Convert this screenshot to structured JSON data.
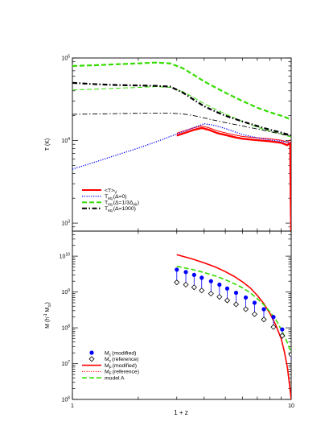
{
  "chart_data": [
    {
      "type": "line",
      "xlabel": "1 + z",
      "ylabel": "T (K)",
      "xscale": "log",
      "yscale": "log",
      "xlim": [
        1,
        10
      ],
      "ylim": [
        800,
        100000
      ],
      "x_tick_labels": [
        "1",
        "10"
      ],
      "y_tick_labels": [
        {
          "base": "10",
          "exp": "3"
        },
        {
          "base": "10",
          "exp": "4"
        },
        {
          "base": "10",
          "exp": "5"
        }
      ],
      "legend_position": "bottom-left",
      "grid": false,
      "series": [
        {
          "name": "<T>",
          "name_sub": "V",
          "color": "#ff0000",
          "style": "solid",
          "width": 2.4,
          "x": [
            3.0,
            3.3,
            3.6,
            3.9,
            4.2,
            4.6,
            5.0,
            5.5,
            6.0,
            7.0,
            8.0,
            9.0,
            9.6,
            9.9,
            9.95,
            10.0
          ],
          "y": [
            11500,
            12500,
            13500,
            14200,
            13500,
            12300,
            11700,
            11000,
            10500,
            10100,
            9800,
            9400,
            8800,
            9400,
            2000,
            800
          ]
        },
        {
          "name": "",
          "color": "#ff0000",
          "style": "solid",
          "width": 1.0,
          "x": [
            3.0,
            3.3,
            3.6,
            3.9,
            4.2,
            4.6,
            5.0,
            5.5,
            6.0,
            7.0,
            8.0,
            9.0,
            9.6,
            9.9
          ],
          "y": [
            12300,
            13300,
            14300,
            15000,
            14300,
            13100,
            12400,
            11700,
            11200,
            10800,
            10500,
            10100,
            9600,
            10200
          ]
        },
        {
          "name": "T",
          "name_sub": "eq",
          "name_suffix": "(Δ=0)",
          "color": "#0000ff",
          "style": "dotted",
          "width": 1.3,
          "x": [
            1.0,
            1.3,
            1.6,
            2.0,
            2.5,
            3.0,
            3.5,
            4.0,
            4.5,
            5.0,
            5.5,
            6.0,
            7.0,
            8.0,
            9.0,
            9.6,
            9.9
          ],
          "y": [
            4500,
            5600,
            6700,
            8100,
            10000,
            12000,
            14000,
            16000,
            15200,
            14000,
            12800,
            11800,
            10800,
            10200,
            9800,
            9500,
            9400
          ]
        },
        {
          "name": "T",
          "name_sub": "eq",
          "name_suffix": "(Δ=1/3Δ",
          "name_suffix_sub": "vir",
          "name_suffix_end": ")",
          "color": "#33dd00",
          "style": "dashed",
          "width": 2.2,
          "x": [
            1.0,
            1.3,
            1.6,
            2.0,
            2.4,
            2.8,
            3.2,
            3.6,
            4.0,
            4.5,
            5.0,
            6.0,
            7.0,
            8.0,
            9.0,
            10.0
          ],
          "y": [
            80000,
            82000,
            84000,
            86000,
            88000,
            86000,
            75000,
            62000,
            52000,
            44000,
            38000,
            30000,
            25000,
            22000,
            20000,
            18000
          ]
        },
        {
          "name": "",
          "color": "#33dd00",
          "style": "dashed",
          "width": 1.0,
          "x": [
            1.0,
            1.3,
            1.6,
            2.0,
            2.4,
            2.8,
            3.2,
            3.6,
            4.0,
            4.5,
            5.0,
            6.0,
            7.0,
            8.0,
            9.0,
            10.0
          ],
          "y": [
            41000,
            42000,
            43000,
            44000,
            45000,
            44000,
            39000,
            33000,
            28000,
            24000,
            21000,
            17000,
            14500,
            13000,
            12000,
            11000
          ]
        },
        {
          "name": "T",
          "name_sub": "eq",
          "name_suffix": "(Δ=1000)",
          "color": "#000000",
          "style": "dashdot",
          "width": 2.2,
          "x": [
            1.0,
            1.3,
            1.6,
            2.0,
            2.4,
            2.8,
            3.2,
            3.6,
            4.0,
            4.5,
            5.0,
            6.0,
            7.0,
            8.0,
            9.0,
            10.0
          ],
          "y": [
            50000,
            48000,
            47000,
            46500,
            46000,
            45000,
            38000,
            31000,
            26000,
            22500,
            20000,
            17000,
            15000,
            13500,
            12500,
            11500
          ]
        },
        {
          "name": "",
          "color": "#000000",
          "style": "dashdot",
          "width": 0.9,
          "x": [
            1.0,
            1.3,
            1.6,
            2.0,
            2.4,
            2.8,
            3.2,
            3.6,
            4.0,
            4.5,
            5.0,
            6.0,
            7.0,
            8.0,
            9.0,
            10.0
          ],
          "y": [
            20800,
            21000,
            21200,
            21400,
            21500,
            21500,
            21000,
            20000,
            18800,
            17500,
            16500,
            15000,
            13800,
            12800,
            12000,
            11300
          ]
        }
      ]
    },
    {
      "type": "scatter",
      "xlabel": "1 + z",
      "ylabel": "M (h",
      "ylabel_sup": "-1",
      "ylabel_mid": " M",
      "ylabel_sub": "⊙",
      "ylabel_end": ")",
      "xscale": "log",
      "yscale": "log",
      "xlim": [
        1,
        10
      ],
      "ylim": [
        1000000,
        50000000000
      ],
      "x_tick_labels": [
        "1",
        "10"
      ],
      "y_tick_labels": [
        {
          "base": "10",
          "exp": "6"
        },
        {
          "base": "10",
          "exp": "7"
        },
        {
          "base": "10",
          "exp": "8"
        },
        {
          "base": "10",
          "exp": "9"
        },
        {
          "base": "10",
          "exp": "10"
        }
      ],
      "legend_position": "bottom-left",
      "grid": false,
      "points": [
        {
          "name": "M",
          "name_sub": "c",
          "name_suffix": "(modified)",
          "marker": "filled-circle",
          "color": "#0000ff",
          "x": [
            3.0,
            3.3,
            3.6,
            3.9,
            4.3,
            4.7,
            5.1,
            5.6,
            6.2,
            6.8,
            7.5,
            8.3,
            9.1,
            10.0
          ],
          "y": [
            4200000000,
            3600000000,
            3000000000,
            2500000000,
            2000000000,
            1600000000,
            1250000000,
            950000000,
            700000000,
            500000000,
            330000000,
            200000000,
            90000000,
            18000000
          ],
          "err_low": [
            1900000000,
            1650000000,
            1400000000,
            1150000000,
            950000000,
            780000000,
            620000000,
            480000000,
            360000000,
            260000000,
            180000000,
            110000000,
            50000000,
            12000000
          ],
          "err_high": [
            4200000000,
            3600000000,
            3000000000,
            2500000000,
            2000000000,
            1600000000,
            1250000000,
            950000000,
            700000000,
            500000000,
            330000000,
            200000000,
            90000000,
            18000000
          ]
        },
        {
          "name": "M",
          "name_sub": "c",
          "name_suffix": "(reference)",
          "marker": "open-diamond",
          "color": "#000000",
          "x": [
            3.0,
            3.3,
            3.6,
            3.9,
            4.3,
            4.7,
            5.1,
            5.6,
            6.2,
            6.8,
            7.5,
            8.3,
            9.1,
            10.0
          ],
          "y": [
            1850000000,
            1600000000,
            1350000000,
            1100000000,
            900000000,
            730000000,
            580000000,
            450000000,
            330000000,
            240000000,
            170000000,
            105000000,
            60000000,
            18000000
          ]
        }
      ],
      "series": [
        {
          "name": "M",
          "name_sub": "F",
          "name_suffix": "(modified)",
          "color": "#ff0000",
          "style": "solid",
          "width": 1.6,
          "x": [
            3.0,
            3.5,
            4.0,
            4.5,
            5.0,
            5.5,
            6.0,
            6.5,
            7.0,
            7.5,
            8.0,
            8.5,
            9.0,
            9.3,
            9.6,
            9.8,
            10.0
          ],
          "y": [
            11000000000,
            8500000000,
            6500000000,
            5000000000,
            3700000000,
            2700000000,
            1900000000,
            1300000000,
            800000000,
            470000000,
            250000000,
            120000000,
            50000000,
            22000000,
            8000000,
            3000000,
            1000000
          ]
        },
        {
          "name": "M",
          "name_sub": "F",
          "name_suffix": "(reference)",
          "color": "#ff0000",
          "style": "dotted",
          "width": 1.1,
          "x": [
            3.0,
            3.5,
            4.0,
            4.5,
            5.0,
            5.5,
            6.0,
            6.5,
            7.0,
            7.5,
            8.0,
            8.5,
            9.0,
            9.3,
            9.6,
            9.8,
            10.0
          ],
          "y": [
            11000000000,
            8500000000,
            6500000000,
            5000000000,
            3700000000,
            2700000000,
            1900000000,
            1300000000,
            800000000,
            470000000,
            250000000,
            120000000,
            50000000,
            22000000,
            8000000,
            3000000,
            1000000
          ]
        },
        {
          "name": "model A",
          "color": "#33dd00",
          "style": "dashed",
          "width": 1.6,
          "x": [
            3.0,
            3.5,
            4.0,
            4.5,
            5.0,
            5.5,
            6.0,
            6.5,
            7.0,
            7.5,
            8.0,
            8.5,
            9.0,
            9.5,
            10.0
          ],
          "y": [
            5200000000,
            4300000000,
            3500000000,
            2800000000,
            2200000000,
            1700000000,
            1300000000,
            950000000,
            650000000,
            440000000,
            280000000,
            170000000,
            90000000,
            45000000,
            20000000
          ]
        }
      ]
    }
  ]
}
